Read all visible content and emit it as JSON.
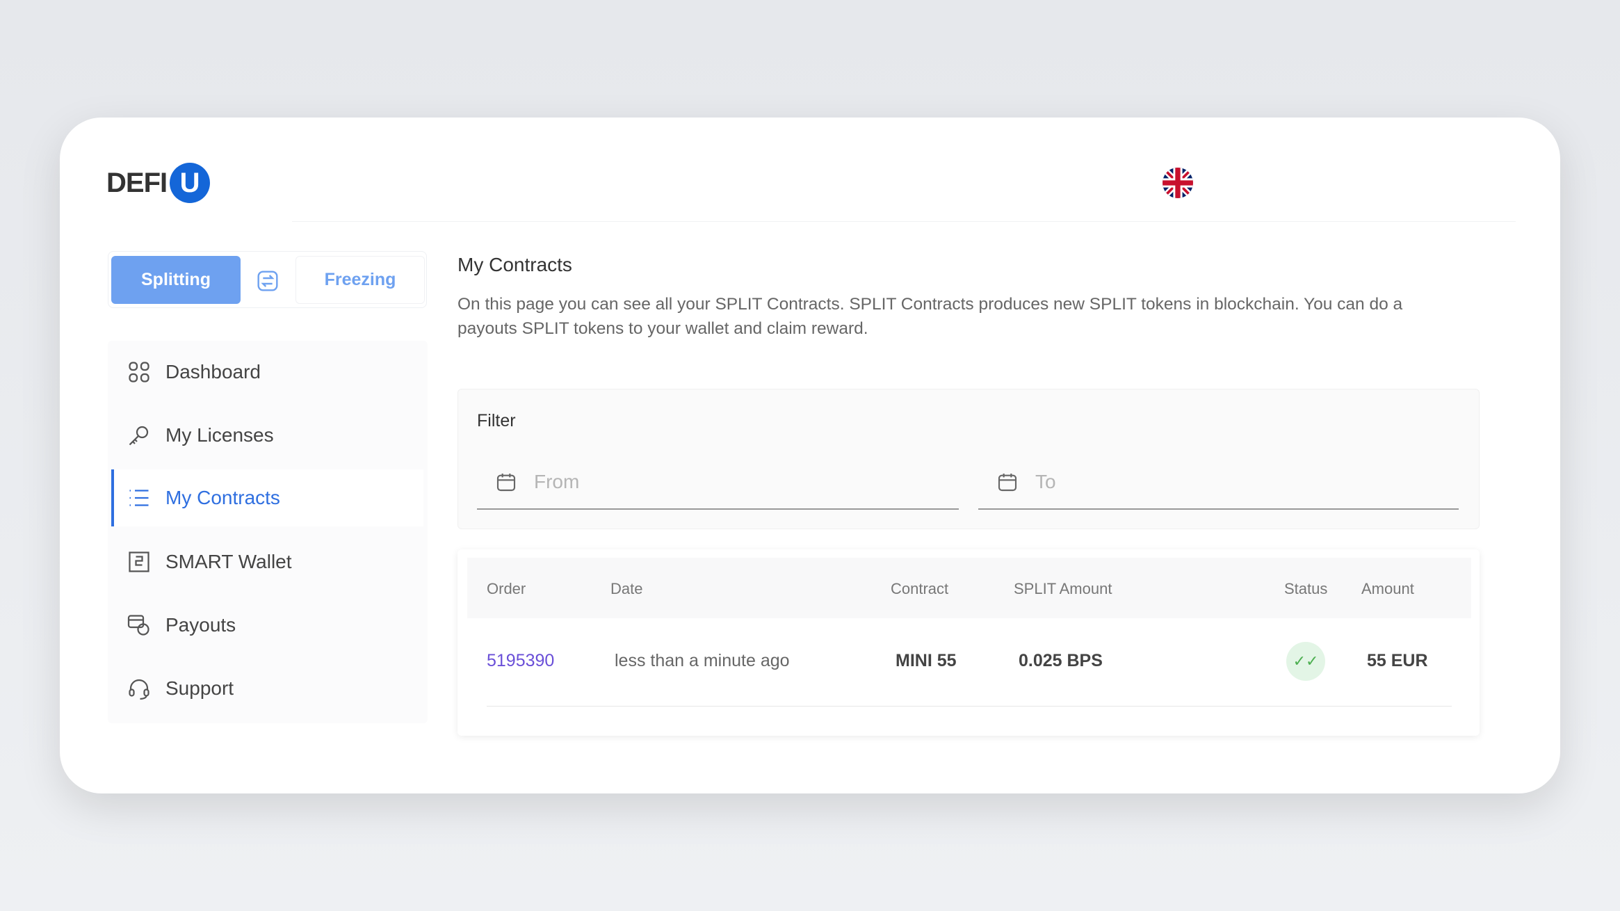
{
  "brand": {
    "logo_text": "DEFI",
    "logo_mark": "U",
    "accent": "#1466d8"
  },
  "header": {
    "language_icon": "uk-flag-icon"
  },
  "mode_toggle": {
    "splitting": "Splitting",
    "freezing": "Freezing",
    "active": "Splitting"
  },
  "sidebar": {
    "items": [
      {
        "label": "Dashboard",
        "icon": "grid-icon"
      },
      {
        "label": "My Licenses",
        "icon": "key-icon"
      },
      {
        "label": "My Contracts",
        "icon": "list-icon",
        "active": true
      },
      {
        "label": "SMART Wallet",
        "icon": "wallet-icon"
      },
      {
        "label": "Payouts",
        "icon": "payouts-icon"
      },
      {
        "label": "Support",
        "icon": "headset-icon"
      }
    ]
  },
  "main": {
    "title": "My Contracts",
    "description": "On this page you can see all your SPLIT Contracts. SPLIT Contracts produces new SPLIT tokens in blockchain. You can do a payouts SPLIT tokens to your wallet and claim reward.",
    "filter": {
      "label": "Filter",
      "from_placeholder": "From",
      "to_placeholder": "To"
    },
    "table": {
      "columns": [
        "Order",
        "Date",
        "Contract",
        "SPLIT Amount",
        "Status",
        "Amount"
      ],
      "rows": [
        {
          "order": "5195390",
          "date": "less than a minute ago",
          "contract": "MINI 55",
          "split_amount": "0.025 BPS",
          "status": "completed",
          "amount": "55 EUR"
        }
      ]
    }
  }
}
